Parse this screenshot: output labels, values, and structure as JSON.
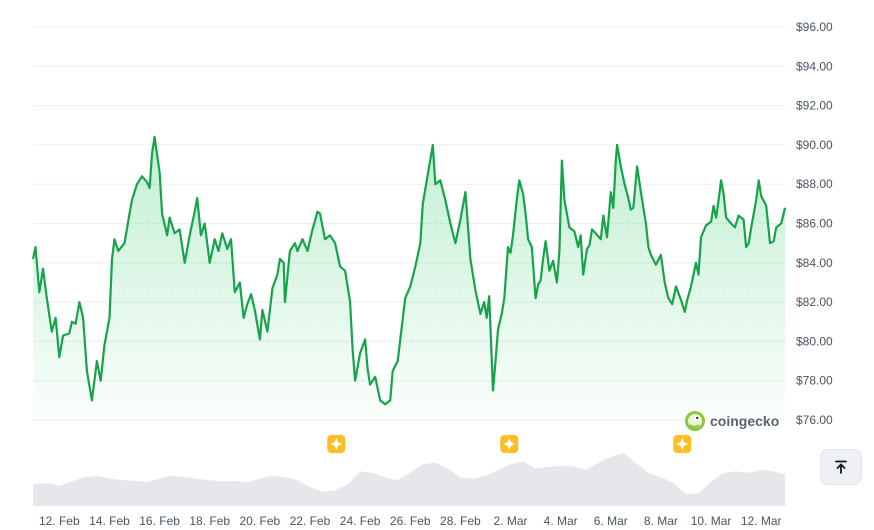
{
  "chart_data": {
    "type": "area",
    "title": "",
    "xlabel": "",
    "ylabel": "",
    "y_ticks": [
      "$96.00",
      "$94.00",
      "$92.00",
      "$90.00",
      "$88.00",
      "$86.00",
      "$84.00",
      "$82.00",
      "$80.00",
      "$78.00",
      "$76.00"
    ],
    "ylim": [
      76,
      96
    ],
    "x_ticks": [
      "12. Feb",
      "14. Feb",
      "16. Feb",
      "18. Feb",
      "20. Feb",
      "22. Feb",
      "24. Feb",
      "26. Feb",
      "28. Feb",
      "2. Mar",
      "4. Mar",
      "6. Mar",
      "8. Mar",
      "10. Mar",
      "12. Mar"
    ],
    "x_tick_days": [
      2,
      4,
      6,
      8,
      10,
      12,
      14,
      16,
      18,
      20,
      22,
      24,
      26,
      28,
      30
    ],
    "xlim_days": [
      0.95,
      30.95
    ],
    "price_series": {
      "name": "Price",
      "color": "#16a34a",
      "points": [
        [
          0.95,
          84.2
        ],
        [
          1.05,
          84.8
        ],
        [
          1.2,
          82.5
        ],
        [
          1.35,
          83.7
        ],
        [
          1.5,
          82.2
        ],
        [
          1.7,
          80.5
        ],
        [
          1.85,
          81.2
        ],
        [
          2.0,
          79.2
        ],
        [
          2.15,
          80.3
        ],
        [
          2.4,
          80.4
        ],
        [
          2.5,
          81.0
        ],
        [
          2.65,
          80.9
        ],
        [
          2.8,
          82.0
        ],
        [
          2.95,
          81.2
        ],
        [
          3.1,
          78.5
        ],
        [
          3.3,
          77.0
        ],
        [
          3.5,
          79.0
        ],
        [
          3.65,
          78.0
        ],
        [
          3.8,
          79.8
        ],
        [
          4.0,
          81.2
        ],
        [
          4.1,
          84.2
        ],
        [
          4.2,
          85.2
        ],
        [
          4.35,
          84.6
        ],
        [
          4.6,
          85.0
        ],
        [
          4.8,
          86.5
        ],
        [
          4.9,
          87.2
        ],
        [
          5.1,
          88.0
        ],
        [
          5.3,
          88.4
        ],
        [
          5.5,
          88.1
        ],
        [
          5.6,
          87.8
        ],
        [
          5.7,
          89.6
        ],
        [
          5.8,
          90.4
        ],
        [
          6.0,
          88.6
        ],
        [
          6.1,
          86.5
        ],
        [
          6.3,
          85.4
        ],
        [
          6.4,
          86.3
        ],
        [
          6.6,
          85.5
        ],
        [
          6.8,
          85.7
        ],
        [
          7.0,
          84.0
        ],
        [
          7.2,
          85.4
        ],
        [
          7.4,
          86.6
        ],
        [
          7.5,
          87.3
        ],
        [
          7.65,
          85.4
        ],
        [
          7.8,
          86.0
        ],
        [
          8.0,
          84.0
        ],
        [
          8.2,
          85.2
        ],
        [
          8.35,
          84.6
        ],
        [
          8.5,
          85.5
        ],
        [
          8.7,
          84.7
        ],
        [
          8.85,
          85.2
        ],
        [
          9.0,
          82.5
        ],
        [
          9.2,
          83.0
        ],
        [
          9.35,
          81.2
        ],
        [
          9.5,
          81.9
        ],
        [
          9.65,
          82.4
        ],
        [
          9.8,
          81.6
        ],
        [
          10.0,
          80.1
        ],
        [
          10.1,
          81.6
        ],
        [
          10.3,
          80.5
        ],
        [
          10.5,
          82.7
        ],
        [
          10.7,
          83.4
        ],
        [
          10.8,
          84.2
        ],
        [
          10.95,
          84.0
        ],
        [
          11.0,
          82.0
        ],
        [
          11.2,
          84.6
        ],
        [
          11.4,
          85.0
        ],
        [
          11.5,
          84.6
        ],
        [
          11.7,
          85.2
        ],
        [
          11.9,
          84.6
        ],
        [
          12.1,
          85.7
        ],
        [
          12.3,
          86.6
        ],
        [
          12.4,
          86.5
        ],
        [
          12.6,
          85.2
        ],
        [
          12.8,
          85.4
        ],
        [
          13.0,
          85.0
        ],
        [
          13.2,
          83.8
        ],
        [
          13.4,
          83.6
        ],
        [
          13.6,
          82.0
        ],
        [
          13.7,
          79.6
        ],
        [
          13.8,
          78.0
        ],
        [
          14.0,
          79.4
        ],
        [
          14.2,
          80.1
        ],
        [
          14.3,
          78.6
        ],
        [
          14.4,
          77.8
        ],
        [
          14.6,
          78.2
        ],
        [
          14.8,
          77.0
        ],
        [
          15.0,
          76.8
        ],
        [
          15.2,
          77.0
        ],
        [
          15.3,
          78.5
        ],
        [
          15.5,
          79.0
        ],
        [
          15.8,
          82.2
        ],
        [
          16.0,
          82.8
        ],
        [
          16.2,
          83.8
        ],
        [
          16.4,
          85.0
        ],
        [
          16.5,
          87.0
        ],
        [
          16.7,
          88.5
        ],
        [
          16.9,
          90.0
        ],
        [
          17.0,
          88.0
        ],
        [
          17.2,
          88.2
        ],
        [
          17.4,
          87.2
        ],
        [
          17.6,
          86.0
        ],
        [
          17.8,
          85.0
        ],
        [
          18.0,
          86.2
        ],
        [
          18.2,
          87.6
        ],
        [
          18.4,
          84.2
        ],
        [
          18.6,
          82.6
        ],
        [
          18.8,
          81.4
        ],
        [
          18.95,
          82.0
        ],
        [
          19.05,
          81.2
        ],
        [
          19.15,
          82.3
        ],
        [
          19.3,
          77.5
        ],
        [
          19.4,
          79.0
        ],
        [
          19.5,
          80.6
        ],
        [
          19.65,
          81.4
        ],
        [
          19.75,
          82.2
        ],
        [
          19.9,
          84.8
        ],
        [
          20.0,
          84.5
        ],
        [
          20.1,
          85.4
        ],
        [
          20.25,
          87.2
        ],
        [
          20.35,
          88.2
        ],
        [
          20.5,
          87.5
        ],
        [
          20.6,
          86.5
        ],
        [
          20.7,
          85.2
        ],
        [
          20.85,
          84.8
        ],
        [
          21.0,
          82.2
        ],
        [
          21.1,
          82.9
        ],
        [
          21.2,
          83.1
        ],
        [
          21.3,
          84.2
        ],
        [
          21.4,
          85.1
        ],
        [
          21.55,
          83.6
        ],
        [
          21.7,
          84.1
        ],
        [
          21.85,
          83.0
        ],
        [
          21.95,
          84.6
        ],
        [
          22.05,
          89.2
        ],
        [
          22.15,
          87.2
        ],
        [
          22.35,
          85.8
        ],
        [
          22.55,
          85.6
        ],
        [
          22.7,
          84.8
        ],
        [
          22.8,
          85.4
        ],
        [
          22.9,
          83.4
        ],
        [
          23.05,
          84.7
        ],
        [
          23.15,
          84.9
        ],
        [
          23.25,
          85.7
        ],
        [
          23.4,
          85.5
        ],
        [
          23.6,
          85.2
        ],
        [
          23.7,
          86.4
        ],
        [
          23.85,
          85.3
        ],
        [
          24.0,
          87.6
        ],
        [
          24.1,
          86.8
        ],
        [
          24.2,
          89.2
        ],
        [
          24.25,
          90.0
        ],
        [
          24.4,
          88.9
        ],
        [
          24.55,
          88.0
        ],
        [
          24.7,
          87.3
        ],
        [
          24.8,
          86.7
        ],
        [
          24.9,
          86.8
        ],
        [
          25.05,
          88.9
        ],
        [
          25.2,
          87.6
        ],
        [
          25.4,
          86.0
        ],
        [
          25.5,
          84.8
        ],
        [
          25.6,
          84.4
        ],
        [
          25.8,
          83.9
        ],
        [
          26.0,
          84.4
        ],
        [
          26.15,
          83.0
        ],
        [
          26.3,
          82.2
        ],
        [
          26.45,
          81.9
        ],
        [
          26.6,
          82.8
        ],
        [
          26.8,
          82.1
        ],
        [
          26.95,
          81.5
        ],
        [
          27.05,
          82.1
        ],
        [
          27.2,
          82.8
        ],
        [
          27.4,
          84.0
        ],
        [
          27.5,
          83.4
        ],
        [
          27.6,
          85.3
        ],
        [
          27.8,
          85.9
        ],
        [
          28.0,
          86.1
        ],
        [
          28.1,
          86.9
        ],
        [
          28.2,
          86.3
        ],
        [
          28.3,
          87.2
        ],
        [
          28.4,
          88.2
        ],
        [
          28.5,
          87.5
        ],
        [
          28.6,
          86.3
        ],
        [
          28.8,
          86.0
        ],
        [
          28.95,
          85.8
        ],
        [
          29.1,
          86.4
        ],
        [
          29.3,
          86.2
        ],
        [
          29.4,
          84.8
        ],
        [
          29.5,
          85.0
        ],
        [
          29.6,
          85.8
        ],
        [
          29.8,
          87.2
        ],
        [
          29.9,
          88.2
        ],
        [
          30.0,
          87.4
        ],
        [
          30.2,
          86.9
        ],
        [
          30.35,
          85.0
        ],
        [
          30.5,
          85.1
        ],
        [
          30.6,
          85.8
        ],
        [
          30.8,
          86.0
        ],
        [
          30.95,
          86.8
        ]
      ]
    },
    "volume_series": {
      "name": "Volume",
      "color": "#e5e7eb",
      "relative_heights": [
        [
          0.95,
          0.3
        ],
        [
          1.5,
          0.32
        ],
        [
          2.0,
          0.28
        ],
        [
          2.5,
          0.34
        ],
        [
          3.0,
          0.4
        ],
        [
          3.5,
          0.42
        ],
        [
          4.0,
          0.38
        ],
        [
          4.5,
          0.36
        ],
        [
          5.0,
          0.35
        ],
        [
          5.5,
          0.33
        ],
        [
          6.0,
          0.38
        ],
        [
          6.5,
          0.42
        ],
        [
          7.0,
          0.4
        ],
        [
          7.5,
          0.38
        ],
        [
          8.0,
          0.36
        ],
        [
          8.5,
          0.34
        ],
        [
          9.0,
          0.35
        ],
        [
          9.5,
          0.33
        ],
        [
          10.0,
          0.38
        ],
        [
          10.5,
          0.42
        ],
        [
          11.0,
          0.4
        ],
        [
          11.5,
          0.36
        ],
        [
          12.0,
          0.26
        ],
        [
          12.5,
          0.2
        ],
        [
          13.0,
          0.22
        ],
        [
          13.5,
          0.3
        ],
        [
          14.0,
          0.48
        ],
        [
          14.5,
          0.46
        ],
        [
          15.0,
          0.4
        ],
        [
          15.5,
          0.36
        ],
        [
          16.0,
          0.46
        ],
        [
          16.5,
          0.58
        ],
        [
          17.0,
          0.6
        ],
        [
          17.5,
          0.52
        ],
        [
          18.0,
          0.4
        ],
        [
          18.5,
          0.38
        ],
        [
          19.0,
          0.42
        ],
        [
          19.5,
          0.5
        ],
        [
          20.0,
          0.58
        ],
        [
          20.5,
          0.62
        ],
        [
          21.0,
          0.52
        ],
        [
          21.5,
          0.54
        ],
        [
          22.0,
          0.56
        ],
        [
          22.5,
          0.55
        ],
        [
          23.0,
          0.5
        ],
        [
          23.5,
          0.6
        ],
        [
          24.0,
          0.68
        ],
        [
          24.5,
          0.74
        ],
        [
          25.0,
          0.6
        ],
        [
          25.5,
          0.46
        ],
        [
          26.0,
          0.4
        ],
        [
          26.5,
          0.32
        ],
        [
          27.0,
          0.16
        ],
        [
          27.5,
          0.18
        ],
        [
          28.0,
          0.34
        ],
        [
          28.5,
          0.46
        ],
        [
          29.0,
          0.48
        ],
        [
          29.5,
          0.46
        ],
        [
          30.0,
          0.5
        ],
        [
          30.5,
          0.48
        ],
        [
          30.95,
          0.44
        ]
      ]
    },
    "grid": true,
    "legend": "none"
  },
  "markers": {
    "event_days": [
      13.05,
      19.95,
      26.85
    ],
    "event_color": "#fbbf24"
  },
  "watermark": {
    "text": "coingecko",
    "icon": "gecko-logo-icon"
  },
  "ui": {
    "scroll_top_icon": "arrow-up-to-line-icon"
  }
}
